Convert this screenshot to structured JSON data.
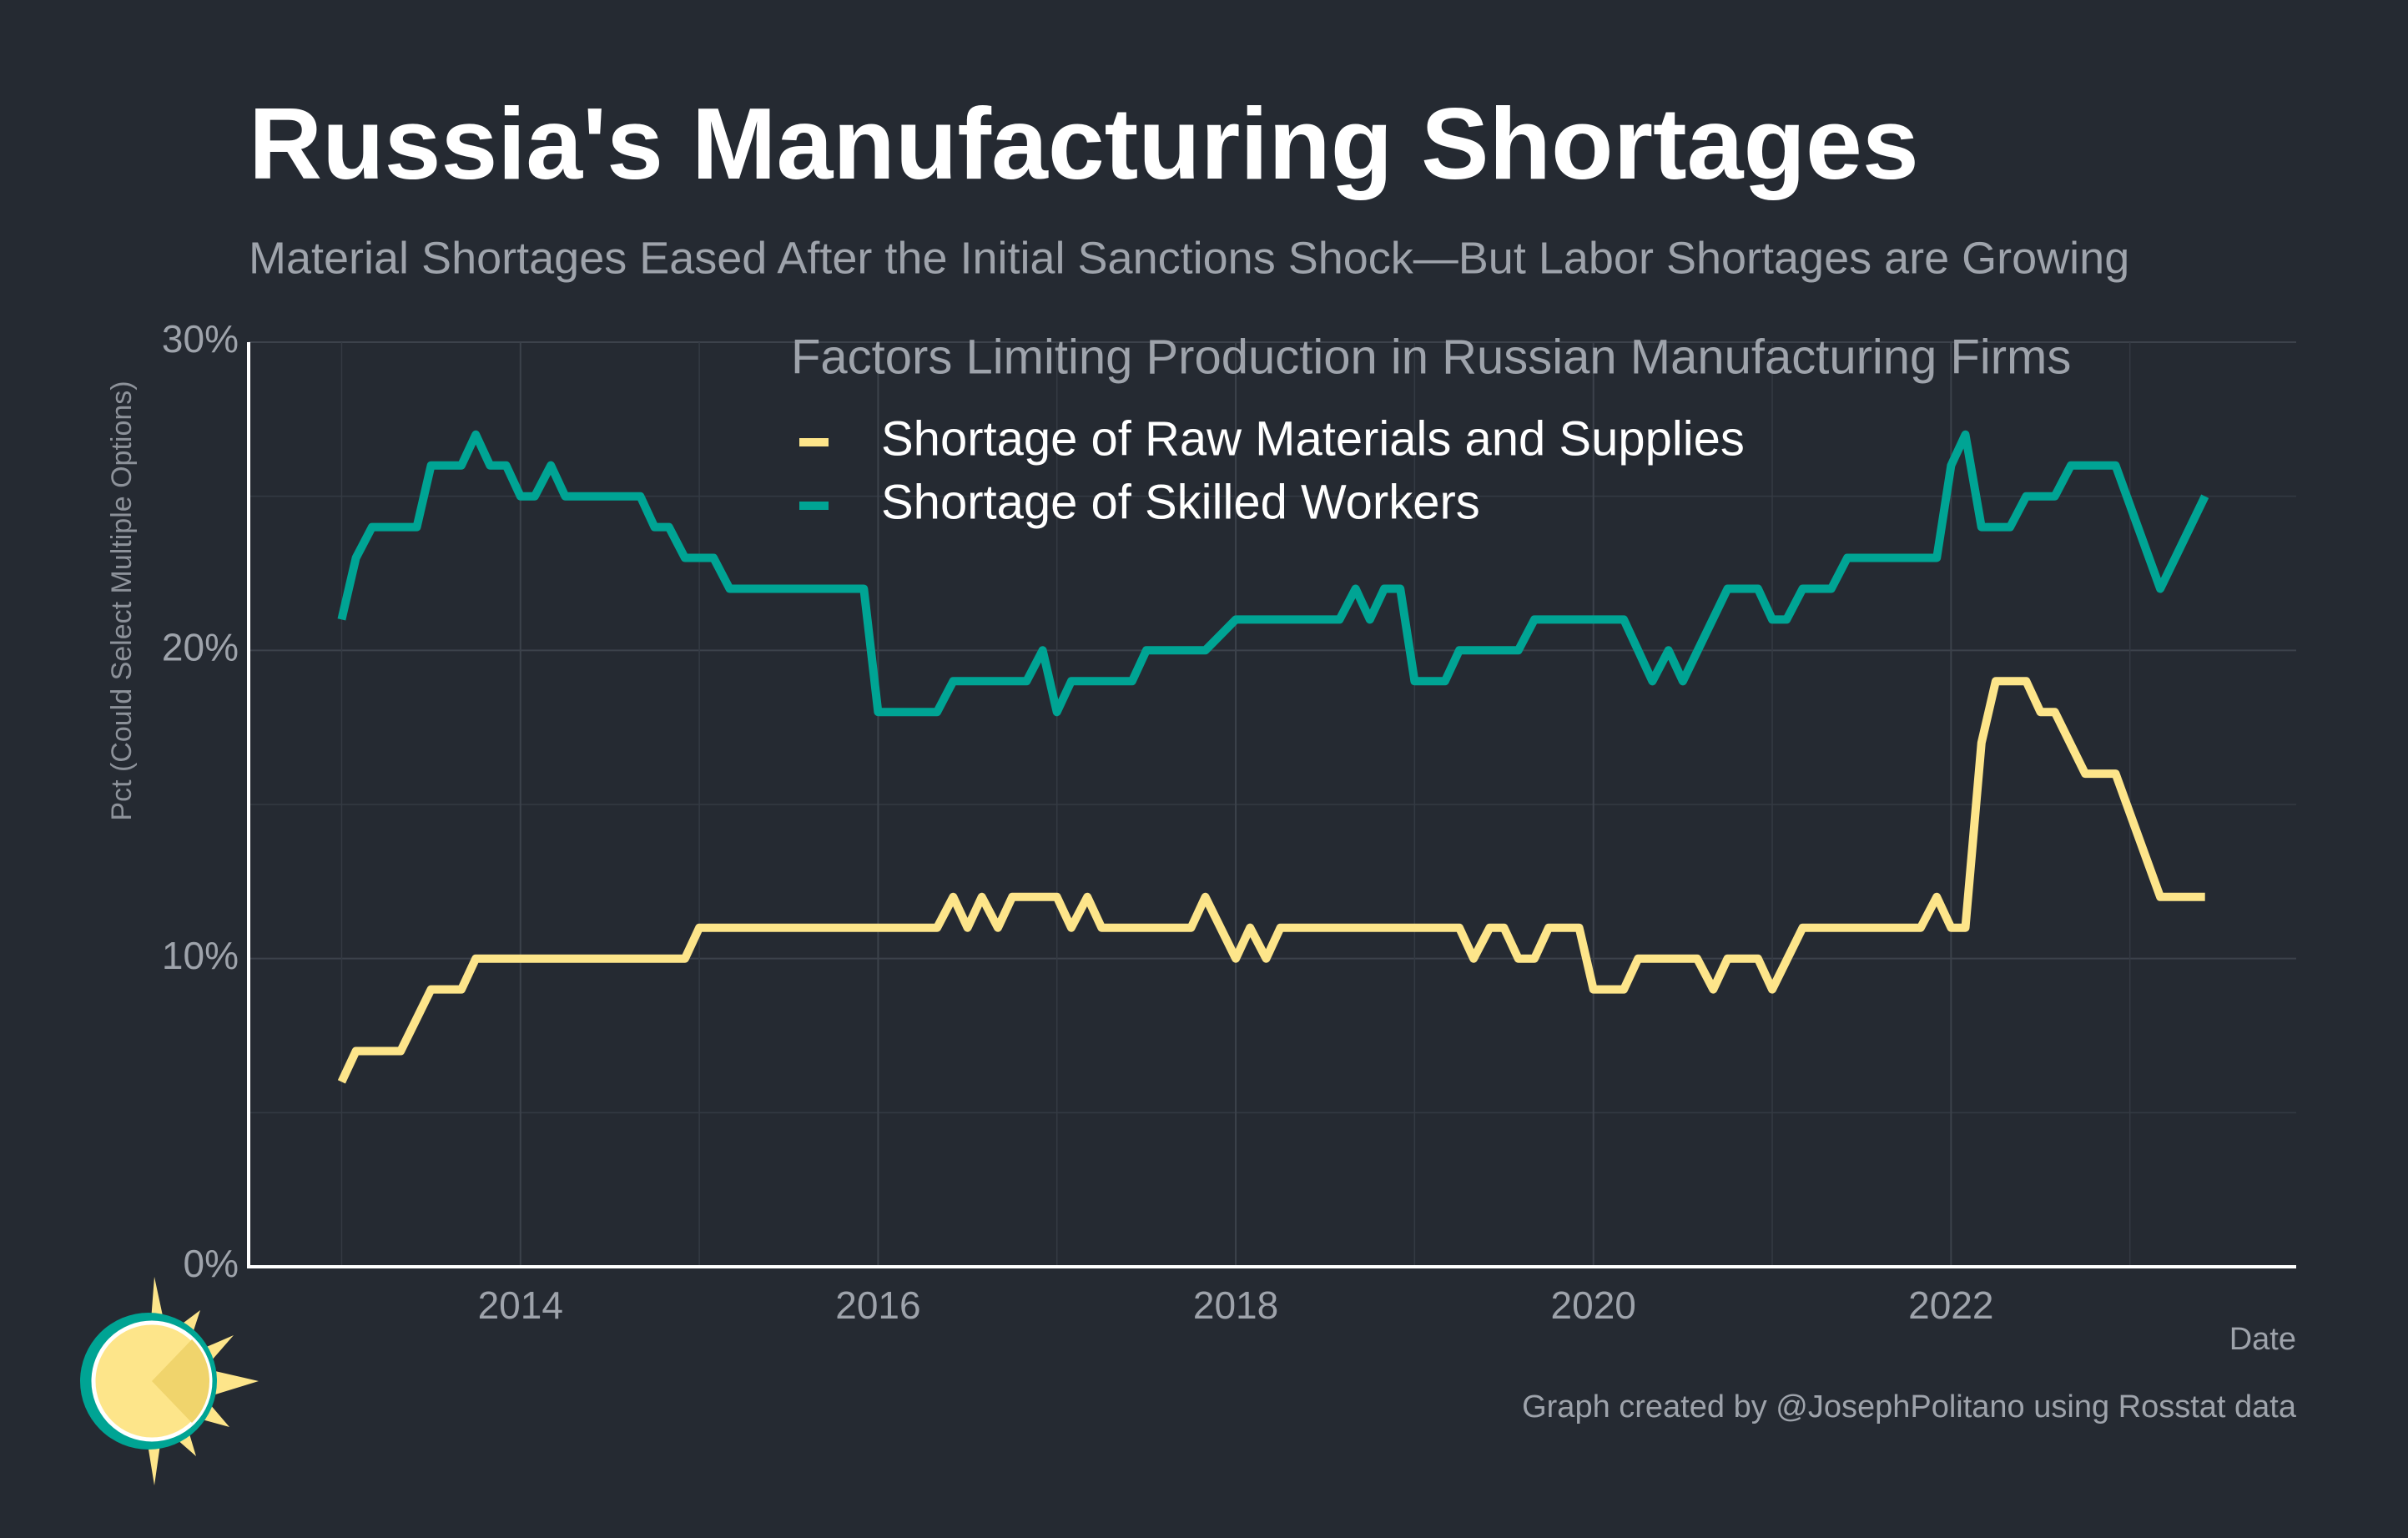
{
  "chart_data": {
    "type": "line",
    "title": "Russia's Manufacturing Shortages",
    "subtitle": "Material Shortages Eased After the Initial Sanctions Shock—But Labor Shortages are Growing",
    "y_label": "Pct (Could Select Multiple Options)",
    "x_label": "Date",
    "legend_title": "Factors Limiting Production in Russian Manufacturing Firms",
    "caption": "Graph created by @JosephPolitano using Rosstat data",
    "legend_position": "top-right",
    "grid": true,
    "xlim": [
      2012.48,
      2023.93
    ],
    "ylim": [
      0,
      30
    ],
    "xticks": [
      2014,
      2016,
      2018,
      2020,
      2022
    ],
    "yticks": [
      {
        "value": 0,
        "label": "0%"
      },
      {
        "value": 10,
        "label": "10%"
      },
      {
        "value": 20,
        "label": "20%"
      },
      {
        "value": 30,
        "label": "30%"
      }
    ],
    "series": [
      {
        "name": "Shortage of Raw Materials and Supplies",
        "color": "#fde58a",
        "x": [
          2013,
          2013.08,
          2013.33,
          2013.5,
          2013.67,
          2013.75,
          2014.92,
          2015,
          2016.33,
          2016.42,
          2016.5,
          2016.58,
          2016.67,
          2016.75,
          2017,
          2017.08,
          2017.17,
          2017.25,
          2017.75,
          2017.83,
          2018,
          2018.08,
          2018.17,
          2018.25,
          2019.25,
          2019.33,
          2019.42,
          2019.5,
          2019.58,
          2019.67,
          2019.75,
          2019.92,
          2020,
          2020.17,
          2020.25,
          2020.58,
          2020.67,
          2020.75,
          2020.92,
          2021,
          2021.17,
          2021.83,
          2021.92,
          2022,
          2022.08,
          2022.17,
          2022.25,
          2022.42,
          2022.5,
          2022.58,
          2022.75,
          2022.92,
          2023.17,
          2023.42
        ],
        "values": [
          6,
          7,
          7,
          9,
          9,
          10,
          10,
          11,
          11,
          12,
          11,
          12,
          11,
          12,
          12,
          11,
          12,
          11,
          11,
          12,
          10,
          11,
          10,
          11,
          11,
          10,
          11,
          11,
          10,
          10,
          11,
          11,
          9,
          9,
          10,
          10,
          9,
          10,
          10,
          9,
          11,
          11,
          12,
          11,
          11,
          17,
          19,
          19,
          18,
          18,
          16,
          16,
          12,
          12
        ]
      },
      {
        "name": "Shortage of Skilled Workers",
        "color": "#00a494",
        "x": [
          2013,
          2013.08,
          2013.17,
          2013.42,
          2013.5,
          2013.67,
          2013.75,
          2013.83,
          2013.92,
          2014,
          2014.08,
          2014.17,
          2014.25,
          2014.67,
          2014.75,
          2014.83,
          2014.92,
          2015.08,
          2015.17,
          2015.92,
          2016,
          2016.33,
          2016.42,
          2016.83,
          2016.92,
          2017,
          2017.08,
          2017.42,
          2017.5,
          2017.83,
          2018,
          2018.58,
          2018.67,
          2018.75,
          2018.83,
          2018.92,
          2019,
          2019.17,
          2019.25,
          2019.58,
          2019.67,
          2020.17,
          2020.33,
          2020.42,
          2020.5,
          2020.75,
          2020.92,
          2021,
          2021.08,
          2021.17,
          2021.33,
          2021.42,
          2021.92,
          2022,
          2022.08,
          2022.17,
          2022.33,
          2022.42,
          2022.58,
          2022.67,
          2022.92,
          2023.17,
          2023.42
        ],
        "values": [
          21,
          23,
          24,
          24,
          26,
          26,
          27,
          26,
          26,
          25,
          25,
          26,
          25,
          25,
          24,
          24,
          23,
          23,
          22,
          22,
          18,
          18,
          19,
          19,
          20,
          18,
          19,
          19,
          20,
          20,
          21,
          21,
          22,
          21,
          22,
          22,
          19,
          19,
          20,
          20,
          21,
          21,
          19,
          20,
          19,
          22,
          22,
          21,
          21,
          22,
          22,
          23,
          23,
          26,
          27,
          24,
          24,
          25,
          25,
          26,
          26,
          22,
          25
        ]
      }
    ]
  }
}
